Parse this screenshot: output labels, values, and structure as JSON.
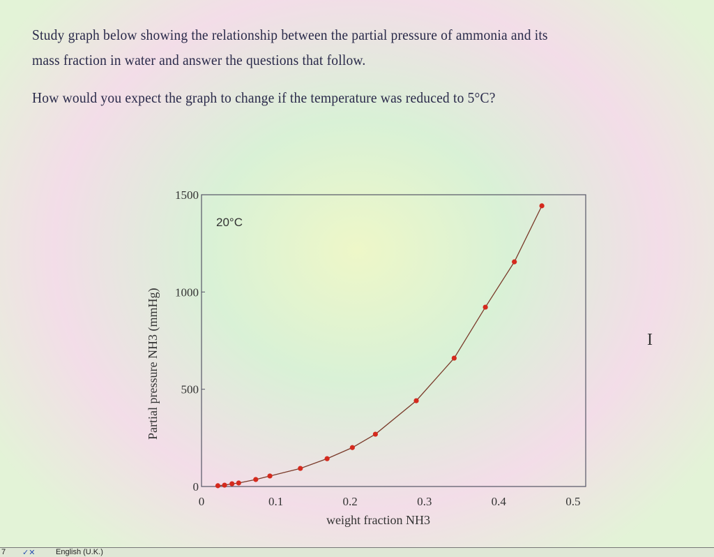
{
  "question": {
    "line1": "Study graph below showing the relationship between the partial pressure of ammonia and its",
    "line2": "mass fraction in water and answer the questions that follow.",
    "line3": "How would you expect the graph to change if the temperature was reduced to 5°C?"
  },
  "chart_data": {
    "type": "line",
    "title": "",
    "annotation": "20°C",
    "xlabel": "weight fraction NH3",
    "ylabel": "Partial pressure NH3 (mmHg)",
    "xlim": [
      0,
      0.517
    ],
    "ylim": [
      0,
      1500
    ],
    "xticks": [
      "0",
      "0.1",
      "0.2",
      "0.3",
      "0.4",
      "0.5"
    ],
    "yticks": [
      "0",
      "500",
      "1000",
      "1500"
    ],
    "grid": false,
    "marker_color": "#d42a1e",
    "line_color": "#7a3a2a",
    "points": [
      [
        0.022,
        4
      ],
      [
        0.031,
        7
      ],
      [
        0.041,
        14
      ],
      [
        0.05,
        18
      ],
      [
        0.073,
        36
      ],
      [
        0.092,
        54
      ],
      [
        0.133,
        93
      ],
      [
        0.169,
        143
      ],
      [
        0.203,
        200
      ],
      [
        0.234,
        269
      ],
      [
        0.289,
        441
      ],
      [
        0.34,
        660
      ],
      [
        0.382,
        922
      ],
      [
        0.421,
        1155
      ],
      [
        0.458,
        1443
      ]
    ]
  },
  "status_bar": {
    "page": "7",
    "language": "English (U.K.)"
  }
}
